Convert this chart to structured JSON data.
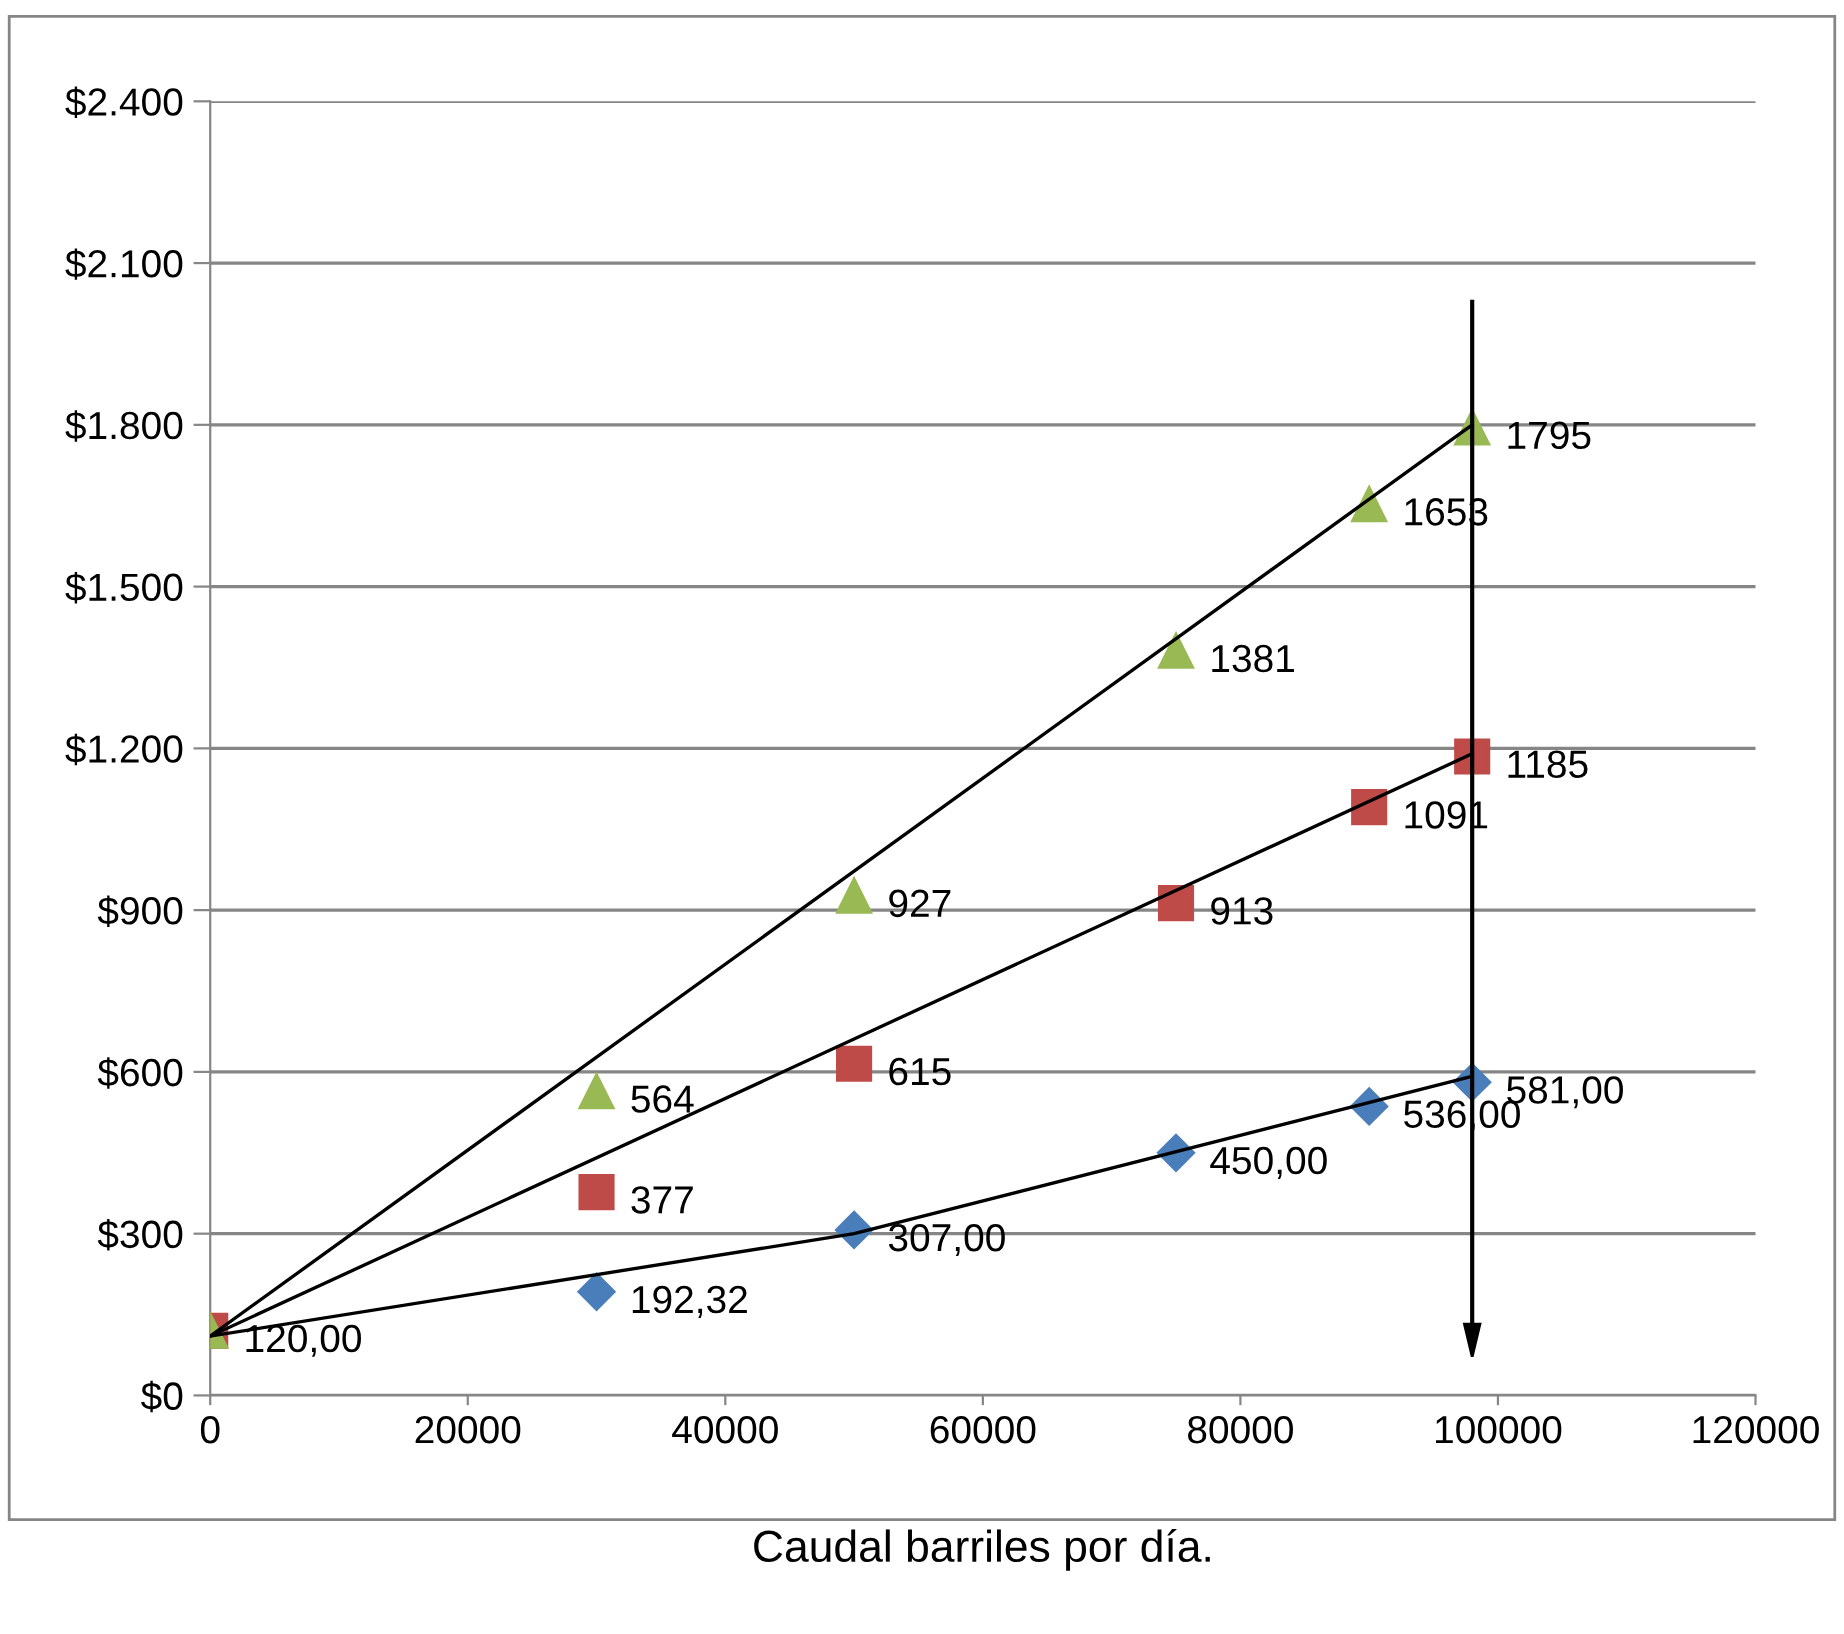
{
  "chart_data": {
    "type": "scatter",
    "xlabel": "Caudal barriles por día.",
    "x": [
      0,
      30000,
      50000,
      75000,
      90000,
      98000
    ],
    "series": [
      {
        "color": "#4a7ebb",
        "marker": "diamond",
        "values": [
          null,
          192.32,
          307,
          450,
          536,
          581
        ],
        "value_labels": [
          null,
          "192,32",
          "307,00",
          "450,00",
          "536,00",
          "581,00"
        ]
      },
      {
        "color": "#be4b48",
        "marker": "square",
        "values": [
          120,
          377,
          615,
          913,
          1091,
          1185
        ],
        "value_labels": [
          "120,00",
          "377",
          "615",
          "913",
          "1091",
          "1185"
        ]
      },
      {
        "color": "#98b954",
        "marker": "triangle",
        "values": [
          120,
          564,
          927,
          1381,
          1653,
          1795
        ],
        "value_labels": [
          null,
          "564",
          "927",
          "1381",
          "1653",
          "1795"
        ]
      },
      {
        "type": "line",
        "color": "#000000",
        "marker": "none",
        "x": [
          0,
          50000,
          98000
        ],
        "values": [
          110,
          300,
          592
        ]
      },
      {
        "type": "line",
        "color": "#000000",
        "marker": "none",
        "x": [
          0,
          98000
        ],
        "values": [
          110,
          1190
        ]
      },
      {
        "type": "line",
        "color": "#000000",
        "marker": "none",
        "x": [
          0,
          98000
        ],
        "values": [
          110,
          1800
        ]
      }
    ],
    "ref_lines": [
      {
        "axis": "x",
        "value": 98000,
        "color": "#000000",
        "line_style": "solid"
      }
    ],
    "xlim": [
      0,
      120000
    ],
    "xticks": [
      0,
      20000,
      40000,
      60000,
      80000,
      100000,
      120000
    ],
    "ylim": [
      0,
      2400
    ],
    "yticks": [
      {
        "value": 0,
        "label": "$0"
      },
      {
        "value": 300,
        "label": "$300"
      },
      {
        "value": 600,
        "label": "$600"
      },
      {
        "value": 900,
        "label": "$900"
      },
      {
        "value": 1200,
        "label": "$1.200"
      },
      {
        "value": 1500,
        "label": "$1.500"
      },
      {
        "value": 1800,
        "label": "$1.800"
      },
      {
        "value": 2100,
        "label": "$2.100"
      },
      {
        "value": 2400,
        "label": "$2.400"
      }
    ],
    "grid": "y",
    "legend": false
  }
}
